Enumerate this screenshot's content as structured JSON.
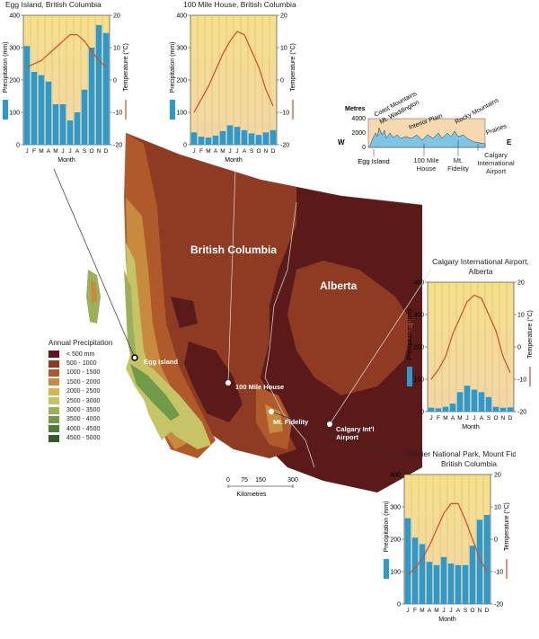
{
  "map": {
    "region_labels": {
      "bc": "British Columbia",
      "alberta": "Alberta"
    },
    "stations": [
      {
        "label": "Egg Island"
      },
      {
        "label": "100 Mile House"
      },
      {
        "label": "Mt. Fidelity"
      },
      {
        "label": "Calgary Int'l Airport"
      }
    ],
    "legend": {
      "title": "Annual Precipitation",
      "items": [
        {
          "label": "< 500 mm",
          "color": "#5a1a1a"
        },
        {
          "label": "500 - 1000",
          "color": "#8f3a22"
        },
        {
          "label": "1000 - 1500",
          "color": "#b05a2c"
        },
        {
          "label": "1500 - 2000",
          "color": "#c88a3e"
        },
        {
          "label": "2000 - 2500",
          "color": "#d6b452"
        },
        {
          "label": "2500 - 3000",
          "color": "#c7c468"
        },
        {
          "label": "3000 - 3500",
          "color": "#9cb05a"
        },
        {
          "label": "3500 - 4000",
          "color": "#6f9a48"
        },
        {
          "label": "4000 - 4500",
          "color": "#4c7d3a"
        },
        {
          "label": "4500 - 5000",
          "color": "#2f5a2c"
        }
      ]
    },
    "scale": {
      "ticks": [
        "0",
        "75",
        "150",
        "300"
      ],
      "unit": "Kilometres"
    }
  },
  "profile": {
    "ylabel": "Metres",
    "yticks": [
      "4000",
      "2000",
      "0"
    ],
    "west": "W",
    "east": "E",
    "features": [
      "Coast Mountains",
      "Mt. Waddington",
      "Interior Plain",
      "Rocky Mountains",
      "Prairies"
    ],
    "stations": [
      "Egg Island",
      "100 Mile House",
      "Mt. Fidelity",
      "Calgary International Airport"
    ]
  },
  "chart_data": [
    {
      "type": "bar+line",
      "title": "Egg Island, British Columbia",
      "categories": [
        "J",
        "F",
        "M",
        "A",
        "M",
        "J",
        "J",
        "A",
        "S",
        "O",
        "N",
        "D"
      ],
      "precipitation": [
        305,
        225,
        215,
        195,
        125,
        125,
        75,
        100,
        170,
        300,
        370,
        345
      ],
      "temperature": [
        4,
        5,
        6,
        8,
        10,
        12,
        14,
        14,
        12,
        9,
        6,
        4
      ],
      "xlabel": "Month",
      "ylabel_left": "Precipitation (mm)",
      "ylabel_right": "Temperature (°C)",
      "ylim_left": [
        0,
        400
      ],
      "ylim_right": [
        -20,
        20
      ],
      "yticks_left": [
        "400",
        "300",
        "200",
        "100",
        "0"
      ],
      "yticks_right": [
        "20",
        "10",
        "0",
        "-10",
        "-20"
      ]
    },
    {
      "type": "bar+line",
      "title": "100 Mile House, British Columbia",
      "categories": [
        "J",
        "F",
        "M",
        "A",
        "M",
        "J",
        "J",
        "A",
        "S",
        "O",
        "N",
        "D"
      ],
      "precipitation": [
        38,
        25,
        22,
        28,
        42,
        60,
        55,
        45,
        35,
        30,
        38,
        45
      ],
      "temperature": [
        -10,
        -6,
        -2,
        3,
        8,
        12,
        15,
        14,
        9,
        4,
        -3,
        -8
      ],
      "xlabel": "Month",
      "ylabel_left": "Precipitation (mm)",
      "ylabel_right": "Temperature (°C)",
      "ylim_left": [
        0,
        400
      ],
      "ylim_right": [
        -20,
        20
      ],
      "yticks_left": [
        "400",
        "300",
        "200",
        "100",
        "0"
      ],
      "yticks_right": [
        "20",
        "10",
        "0",
        "-10",
        "-20"
      ]
    },
    {
      "type": "bar+line",
      "title": "Calgary International Airport, Alberta",
      "categories": [
        "J",
        "F",
        "M",
        "A",
        "M",
        "J",
        "J",
        "A",
        "S",
        "O",
        "N",
        "D"
      ],
      "precipitation": [
        12,
        10,
        15,
        25,
        60,
        80,
        68,
        60,
        45,
        15,
        12,
        13
      ],
      "temperature": [
        -10,
        -7,
        -3,
        4,
        9,
        14,
        16,
        15,
        10,
        5,
        -3,
        -8
      ],
      "xlabel": "Month",
      "ylabel_left": "Precipitation (mm)",
      "ylabel_right": "Temperature (°C)",
      "ylim_left": [
        0,
        400
      ],
      "ylim_right": [
        -20,
        20
      ],
      "yticks_left": [
        "400",
        "300",
        "200",
        "100",
        "0"
      ],
      "yticks_right": [
        "20",
        "10",
        "0",
        "-10",
        "-20"
      ]
    },
    {
      "type": "bar+line",
      "title": "Glacier National Park, Mount Fidelity, British Columbia",
      "categories": [
        "J",
        "F",
        "M",
        "A",
        "M",
        "J",
        "J",
        "A",
        "S",
        "O",
        "N",
        "D"
      ],
      "precipitation": [
        265,
        205,
        185,
        130,
        120,
        145,
        125,
        120,
        120,
        180,
        260,
        275
      ],
      "temperature": [
        -11,
        -9,
        -6,
        -2,
        3,
        8,
        11,
        11,
        6,
        0,
        -6,
        -10
      ],
      "xlabel": "Month",
      "ylabel_left": "Precipitation (mm)",
      "ylabel_right": "Temperature (°C)",
      "ylim_left": [
        0,
        400
      ],
      "ylim_right": [
        -20,
        20
      ],
      "yticks_left": [
        "400",
        "300",
        "200",
        "100",
        "0"
      ],
      "yticks_right": [
        "20",
        "10",
        "0",
        "-10",
        "-20"
      ]
    }
  ],
  "colors": {
    "bar": "#2a9ad0",
    "line": "#d04a30",
    "plot_bg_top": "#f6e08a",
    "plot_bg_bottom": "#f3d7a8"
  }
}
